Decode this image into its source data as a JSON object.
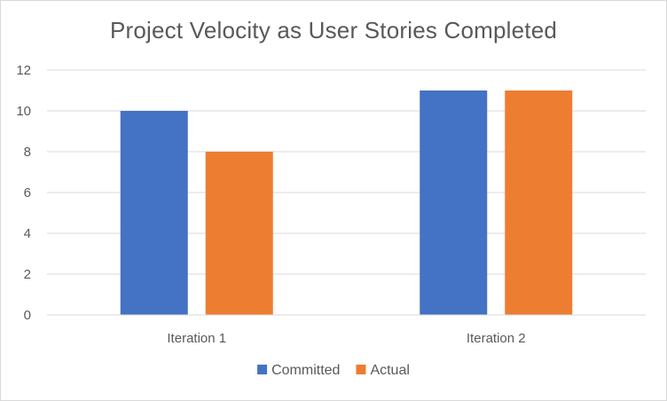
{
  "chart_data": {
    "type": "bar",
    "title": "Project Velocity as User Stories Completed",
    "categories": [
      "Iteration 1",
      "Iteration 2"
    ],
    "series": [
      {
        "name": "Committed",
        "color": "#4472c4",
        "values": [
          10,
          11
        ]
      },
      {
        "name": "Actual",
        "color": "#ed7d31",
        "values": [
          8,
          11
        ]
      }
    ],
    "yticks": [
      "0",
      "2",
      "4",
      "6",
      "8",
      "10",
      "12"
    ],
    "ylim": [
      0,
      12
    ],
    "grid": true,
    "legend_position": "bottom",
    "xlabel": "",
    "ylabel": ""
  }
}
